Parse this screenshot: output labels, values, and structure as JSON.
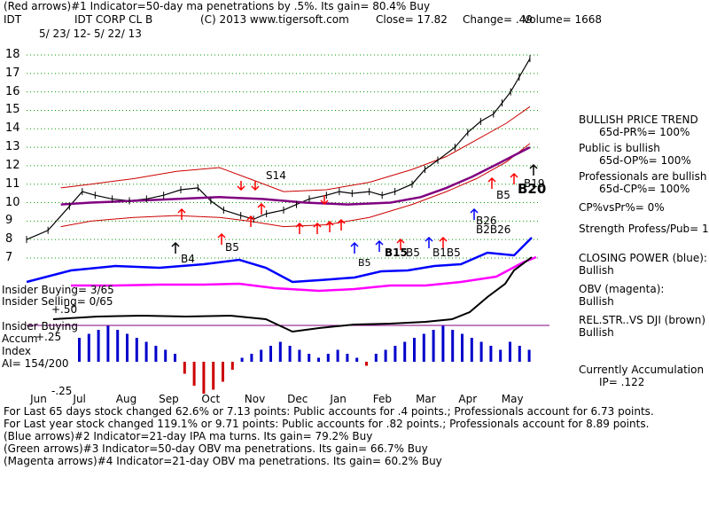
{
  "header": {
    "line1": "(Red arrows)#1 Indicator=50-day ma penetrations by .5%. Its gain= 80.4% Buy",
    "ticker": "IDT",
    "name": "IDT CORP CL B",
    "copyright": "(C) 2013 www.tigersoft.com",
    "close": "Close=  17.82",
    "change": "Change= .49",
    "volume": "Volume= 1668",
    "daterange": "5/ 23/ 12-  5/ 22/ 13"
  },
  "right_panel": {
    "trend_title": "BULLISH PRICE TREND",
    "pr": "65d-PR%= 100%",
    "public_bullish": "Public is bullish",
    "op": "65d-OP%= 100%",
    "pros_bullish": "Professionals are bullish",
    "cp": "65d-CP%= 100%",
    "cpvspr": "CP%vsPr%=  0%",
    "strength": "Strength Profess/Pub= 16",
    "closing_power": "CLOSING POWER (blue):",
    "cp_state": "Bullish",
    "obv": "OBV (magenta):",
    "obv_state": "Bullish",
    "relstr": "REL.STR..VS DJI (brown)",
    "relstr_state": "Bullish",
    "accum": "Currently Accumulation",
    "ip": "IP= .122"
  },
  "left_labels": {
    "insider_buying": "Insider Buying= 3/65",
    "insider_selling": "Insider Selling= 0/65",
    "plus50": "+.50",
    "insider_buying2": "Insider Buying",
    "accum": "Accum",
    "plus25": "+.25",
    "index": "Index",
    "ai": "AI= 154/200",
    "minus25": "-.25"
  },
  "chart_labels": {
    "s14": "S14",
    "b4": "B4",
    "b5a": "B5",
    "b5b": "B5",
    "b5c": "B5",
    "b15": "B15",
    "b1b5": "B1B5",
    "b26": "B26",
    "b2b26": "B2B26",
    "b5d": "B5",
    "b19": "B19",
    "b20": "B20"
  },
  "footer": {
    "line1": "For Last 65 days stock changed  62.6% or  7.13 points:  Public accounts for  .4 points.;  Professionals account for  6.73 points.",
    "line2": "For Last year stock changed  119.1% or  9.71 points:  Public accounts for  .82 points.;  Professionals account for  8.89 points.",
    "line3": "(Blue arrows)#2 Indicator=21-day IPA ma turns. Its gain= 79.2% Buy",
    "line4": "(Green arrows)#3 Indicator=50-day OBV ma penetrations. Its gain= 66.7% Buy",
    "line5": "(Magenta arrows)#4 Indicator=21-day OBV ma penetrations. Its gain= 60.2% Buy"
  },
  "chart_data": {
    "type": "line",
    "title": "IDT CORP CL B",
    "xlabel": "",
    "ylabel": "",
    "ylim": [
      7,
      18
    ],
    "y_ticks": [
      "7",
      "8",
      "9",
      "10",
      "11",
      "12",
      "13",
      "14",
      "15",
      "16",
      "17",
      "18"
    ],
    "y_tick_values": [
      7,
      8,
      9,
      10,
      11,
      12,
      13,
      14,
      15,
      16,
      17,
      18
    ],
    "x_ticks": [
      "Jun",
      "Jul",
      "Aug",
      "Sep",
      "Oct",
      "Nov",
      "Dec",
      "Jan",
      "Feb",
      "Mar",
      "Apr",
      "May"
    ],
    "x_tick_months": [
      0.25,
      1.25,
      2.25,
      3.25,
      4.25,
      5.25,
      6.25,
      7.25,
      8.25,
      9.25,
      10.25,
      11.25
    ],
    "xlim_months": [
      0,
      12
    ],
    "series": [
      {
        "name": "Price",
        "color": "#000000",
        "x": [
          0,
          0.5,
          1,
          1.3,
          1.6,
          2,
          2.4,
          2.8,
          3.2,
          3.6,
          4,
          4.3,
          4.6,
          5,
          5.3,
          5.6,
          6,
          6.3,
          6.6,
          7,
          7.3,
          7.6,
          8,
          8.3,
          8.6,
          9,
          9.3,
          9.6,
          10,
          10.3,
          10.6,
          10.9,
          11.1,
          11.3,
          11.5,
          11.75
        ],
        "values": [
          8.0,
          8.5,
          9.8,
          10.6,
          10.4,
          10.2,
          10.1,
          10.2,
          10.4,
          10.7,
          10.8,
          10.1,
          9.6,
          9.3,
          9.1,
          9.4,
          9.6,
          9.9,
          10.2,
          10.4,
          10.6,
          10.5,
          10.6,
          10.4,
          10.6,
          11.0,
          11.8,
          12.3,
          13.0,
          13.8,
          14.4,
          14.8,
          15.4,
          16.0,
          16.8,
          17.8
        ]
      },
      {
        "name": "50-day MA",
        "color": "#800080",
        "x": [
          0.8,
          1.5,
          2.5,
          3.5,
          4.5,
          5.5,
          6.5,
          7.5,
          8.5,
          9.2,
          9.8,
          10.4,
          11,
          11.75
        ],
        "values": [
          9.9,
          10.0,
          10.1,
          10.2,
          10.3,
          10.2,
          10.0,
          9.9,
          10.0,
          10.3,
          10.8,
          11.4,
          12.1,
          13.0
        ]
      }
    ],
    "upper_band": {
      "x": [
        0.8,
        1.5,
        2.5,
        3.5,
        4.5,
        5.2,
        6,
        7,
        8,
        9,
        9.8,
        10.5,
        11.2,
        11.75
      ],
      "values": [
        10.8,
        11.0,
        11.3,
        11.7,
        11.9,
        11.3,
        10.6,
        10.7,
        11.1,
        11.8,
        12.5,
        13.4,
        14.3,
        15.2
      ]
    },
    "lower_band": {
      "x": [
        0.8,
        1.5,
        2.5,
        3.5,
        4.5,
        5.2,
        6,
        7,
        8,
        9,
        9.8,
        10.5,
        11.2,
        11.75
      ],
      "values": [
        8.7,
        9.0,
        9.2,
        9.3,
        9.2,
        9.0,
        8.7,
        8.8,
        9.2,
        9.9,
        10.6,
        11.3,
        12.2,
        13.2
      ]
    }
  }
}
